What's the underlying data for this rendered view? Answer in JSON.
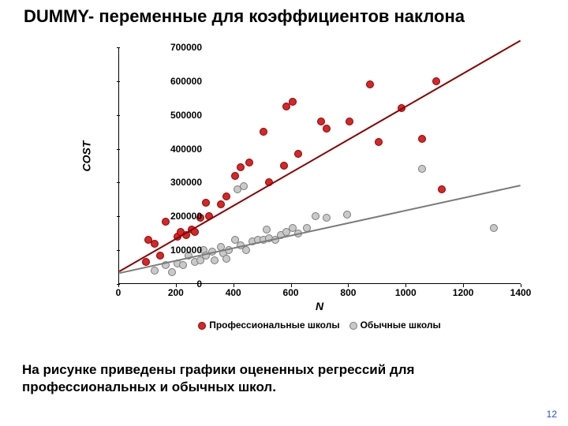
{
  "title": "DUMMY- переменные для коэффициентов наклона",
  "caption": "На рисунке приведены графики оцененных регрессий для профессиональных и обычных школ.",
  "page_num": "12",
  "chart": {
    "type": "scatter",
    "xlabel": "N",
    "ylabel": "COST",
    "xlim": [
      0,
      1400
    ],
    "ylim": [
      0,
      700000
    ],
    "xticks": [
      0,
      200,
      400,
      600,
      800,
      1000,
      1200,
      1400
    ],
    "yticks": [
      0,
      100000,
      200000,
      300000,
      400000,
      500000,
      600000,
      700000
    ],
    "background_color": "#ffffff",
    "axis_color": "#000000",
    "title_fontsize": 22,
    "label_fontsize": 14,
    "tick_fontsize": 12,
    "marker_radius": 5,
    "series": [
      {
        "name": "Профессиональные школы",
        "color": "#d62728",
        "border": "#8b0000",
        "points": [
          [
            90,
            65000
          ],
          [
            100,
            130000
          ],
          [
            120,
            120000
          ],
          [
            140,
            85000
          ],
          [
            160,
            185000
          ],
          [
            200,
            140000
          ],
          [
            210,
            155000
          ],
          [
            230,
            145000
          ],
          [
            250,
            160000
          ],
          [
            260,
            155000
          ],
          [
            280,
            195000
          ],
          [
            300,
            240000
          ],
          [
            310,
            200000
          ],
          [
            350,
            235000
          ],
          [
            370,
            260000
          ],
          [
            400,
            320000
          ],
          [
            420,
            345000
          ],
          [
            450,
            360000
          ],
          [
            500,
            450000
          ],
          [
            520,
            300000
          ],
          [
            570,
            350000
          ],
          [
            580,
            525000
          ],
          [
            600,
            540000
          ],
          [
            620,
            385000
          ],
          [
            700,
            480000
          ],
          [
            720,
            460000
          ],
          [
            800,
            480000
          ],
          [
            870,
            590000
          ],
          [
            900,
            420000
          ],
          [
            980,
            520000
          ],
          [
            1050,
            430000
          ],
          [
            1100,
            600000
          ],
          [
            1120,
            280000
          ]
        ],
        "line": {
          "x1": 0,
          "y1": 35000,
          "x2": 1400,
          "y2": 720000,
          "width": 2
        }
      },
      {
        "name": "Обычные школы",
        "color": "#c9c9c9",
        "border": "#7a7a7a",
        "points": [
          [
            120,
            40000
          ],
          [
            160,
            55000
          ],
          [
            180,
            35000
          ],
          [
            200,
            60000
          ],
          [
            220,
            55000
          ],
          [
            240,
            85000
          ],
          [
            260,
            65000
          ],
          [
            280,
            70000
          ],
          [
            290,
            100000
          ],
          [
            300,
            85000
          ],
          [
            320,
            95000
          ],
          [
            330,
            70000
          ],
          [
            350,
            110000
          ],
          [
            360,
            90000
          ],
          [
            370,
            75000
          ],
          [
            380,
            100000
          ],
          [
            400,
            130000
          ],
          [
            410,
            280000
          ],
          [
            420,
            115000
          ],
          [
            430,
            290000
          ],
          [
            440,
            100000
          ],
          [
            460,
            125000
          ],
          [
            480,
            130000
          ],
          [
            500,
            130000
          ],
          [
            510,
            160000
          ],
          [
            520,
            135000
          ],
          [
            540,
            130000
          ],
          [
            560,
            145000
          ],
          [
            580,
            155000
          ],
          [
            600,
            165000
          ],
          [
            620,
            150000
          ],
          [
            650,
            165000
          ],
          [
            680,
            200000
          ],
          [
            720,
            195000
          ],
          [
            790,
            205000
          ],
          [
            1050,
            340000
          ],
          [
            1300,
            165000
          ]
        ],
        "line": {
          "x1": 0,
          "y1": 30000,
          "x2": 1400,
          "y2": 290000,
          "width": 2
        }
      }
    ],
    "legend": {
      "items": [
        {
          "label": "Профессиональные школы",
          "color": "#d62728",
          "border": "#8b0000"
        },
        {
          "label": "Обычные школы",
          "color": "#c9c9c9",
          "border": "#7a7a7a"
        }
      ]
    }
  }
}
